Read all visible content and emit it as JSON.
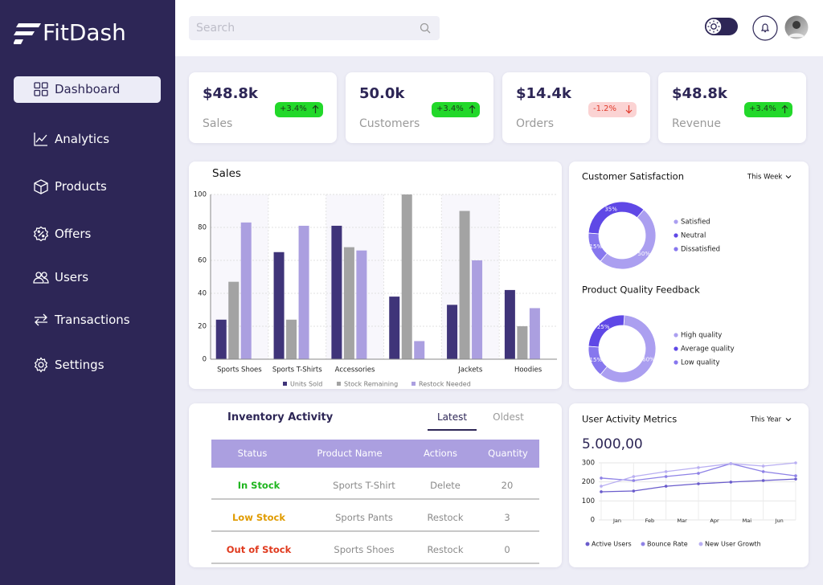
{
  "sidebar": {
    "logo": "FitDash",
    "nav": [
      "Dashboard",
      "Analytics",
      "Products",
      "Offers",
      "Users",
      "Transactions",
      "Settings"
    ],
    "active": 0
  },
  "header": {
    "search_placeholder": "Search"
  },
  "stats": [
    {
      "value": "$48.8k",
      "label": "Sales",
      "change": "+3.4%",
      "trend": "up"
    },
    {
      "value": "50.0k",
      "label": "Customers",
      "change": "+3.4%",
      "trend": "up"
    },
    {
      "value": "$14.4k",
      "label": "Orders",
      "change": "-1.2%",
      "trend": "down"
    },
    {
      "value": "$48.8k",
      "label": "Revenue",
      "change": "+3.4%",
      "trend": "up"
    }
  ],
  "chart_data": [
    {
      "type": "bar",
      "title": "Sales",
      "categories": [
        "Sports Shoes",
        "Sports T-Shirts",
        "Accessories",
        null,
        "Jackets",
        "Hoodies"
      ],
      "series": [
        {
          "name": "Units Sold",
          "color": "#3f3479",
          "values": [
            24,
            65,
            81,
            38,
            33,
            42
          ]
        },
        {
          "name": "Stock Remaining",
          "color": "#a3a3a3",
          "values": [
            47,
            24,
            68,
            100,
            90,
            20
          ]
        },
        {
          "name": "Restock Needed",
          "color": "#ab9fe0",
          "values": [
            83,
            81,
            66,
            11,
            60,
            31
          ]
        }
      ],
      "ylim": [
        0,
        100
      ],
      "yticks": [
        0,
        20,
        40,
        60,
        80,
        100
      ],
      "grid": true,
      "legend": "bottom"
    },
    {
      "type": "pie",
      "donut": true,
      "title": "Customer Satisfaction",
      "period": "This Week",
      "categories": [
        "Satisfied",
        "Neutral",
        "Dissatisfied"
      ],
      "values": [
        50,
        35,
        15
      ],
      "value_labels": [
        "50%",
        "35%",
        "15%"
      ],
      "colors": [
        "#ab9ff0",
        "#5f48e6",
        "#8777ee"
      ],
      "legend": "right"
    },
    {
      "type": "pie",
      "donut": true,
      "title": "Product Quality Feedback",
      "categories": [
        "High quality",
        "Average quality",
        "Low quality"
      ],
      "values": [
        60,
        25,
        15
      ],
      "value_labels": [
        "60%",
        "25%",
        "15%"
      ],
      "colors": [
        "#ab9ff0",
        "#5f48e6",
        "#8777ee"
      ],
      "legend": "right"
    },
    {
      "type": "line",
      "title": "User Activity Metrics",
      "period": "This Year",
      "headline": "5.000,00",
      "categories": [
        "Jan",
        "Feb",
        "Mar",
        "Apr",
        "Mai",
        "Jun",
        null
      ],
      "series": [
        {
          "name": "Active Users",
          "color": "#6a5ccc",
          "values": [
            148,
            152,
            177,
            190,
            199,
            207,
            215
          ]
        },
        {
          "name": "Bounce Rate",
          "color": "#8e82e6",
          "values": [
            220,
            207,
            228,
            245,
            296,
            254,
            232
          ]
        },
        {
          "name": "New User Growth",
          "color": "#b9aff2",
          "values": [
            177,
            228,
            254,
            275,
            296,
            283,
            300
          ]
        }
      ],
      "ylim": [
        0,
        300
      ],
      "yticks": [
        0,
        100,
        200,
        300
      ],
      "grid": true,
      "legend": "bottom"
    }
  ],
  "inventory": {
    "title": "Inventory Activity",
    "tabs": [
      "Latest",
      "Oldest"
    ],
    "active_tab": 0,
    "columns": [
      "Status",
      "Product Name",
      "Actions",
      "Quantity"
    ],
    "rows": [
      [
        "In Stock",
        "Sports T-Shirt",
        "Delete",
        20
      ],
      [
        "Low Stock",
        "Sports Pants",
        "Restock",
        3
      ],
      [
        "Out of Stock",
        "Sports Shoes",
        "Restock",
        0
      ]
    ],
    "status_colors": [
      "#1fb51f",
      "#e09b00",
      "#e03a1e"
    ]
  }
}
